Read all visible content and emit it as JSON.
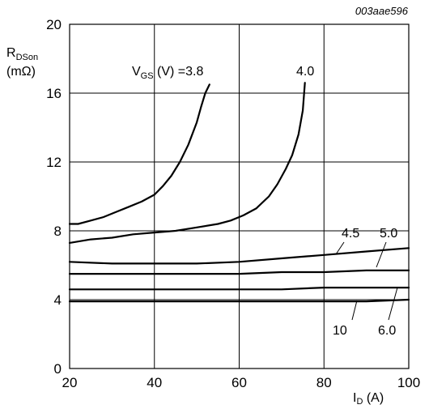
{
  "figure_code": "003aae596",
  "chart_data": {
    "type": "line",
    "ylabel": {
      "main": "R",
      "sub": "DSon",
      "line2": "(mΩ)"
    },
    "xlabel": {
      "main": "I",
      "sub": "D",
      "rest": " (A)"
    },
    "xlim": [
      20,
      100
    ],
    "ylim": [
      0,
      20
    ],
    "xticks": [
      20,
      40,
      60,
      80,
      100
    ],
    "yticks": [
      0,
      4,
      8,
      12,
      16,
      20
    ],
    "grid": true,
    "legend_prefix": {
      "main": "V",
      "sub": "GS",
      "rest": " (V) ="
    },
    "series": [
      {
        "name": "3.8",
        "x": [
          20,
          22,
          25,
          28,
          31,
          34,
          37,
          40,
          42,
          44,
          46,
          48,
          50,
          51,
          52,
          53
        ],
        "y": [
          8.4,
          8.4,
          8.6,
          8.8,
          9.1,
          9.4,
          9.7,
          10.1,
          10.6,
          11.2,
          12.0,
          13.0,
          14.3,
          15.2,
          16.0,
          16.5
        ]
      },
      {
        "name": "4.0",
        "x": [
          20,
          25,
          30,
          35,
          40,
          45,
          50,
          55,
          58,
          61,
          64,
          67,
          69,
          71,
          72.5,
          74,
          75,
          75.5
        ],
        "y": [
          7.3,
          7.5,
          7.6,
          7.8,
          7.9,
          8.0,
          8.2,
          8.4,
          8.6,
          8.9,
          9.3,
          10.0,
          10.7,
          11.6,
          12.4,
          13.6,
          15.0,
          16.6
        ]
      },
      {
        "name": "4.5",
        "x": [
          20,
          30,
          40,
          50,
          60,
          70,
          80,
          90,
          100
        ],
        "y": [
          6.2,
          6.1,
          6.1,
          6.1,
          6.2,
          6.4,
          6.6,
          6.8,
          7.0
        ]
      },
      {
        "name": "5.0",
        "x": [
          20,
          30,
          40,
          50,
          60,
          70,
          80,
          90,
          100
        ],
        "y": [
          5.5,
          5.5,
          5.5,
          5.5,
          5.5,
          5.6,
          5.6,
          5.7,
          5.7
        ]
      },
      {
        "name": "6.0",
        "x": [
          20,
          30,
          40,
          50,
          60,
          70,
          80,
          90,
          100
        ],
        "y": [
          4.6,
          4.6,
          4.6,
          4.6,
          4.6,
          4.6,
          4.7,
          4.7,
          4.7
        ]
      },
      {
        "name": "10",
        "x": [
          20,
          30,
          40,
          50,
          60,
          70,
          80,
          90,
          100
        ],
        "y": [
          3.9,
          3.9,
          3.9,
          3.9,
          3.9,
          3.9,
          3.9,
          3.9,
          4.0
        ]
      }
    ]
  }
}
